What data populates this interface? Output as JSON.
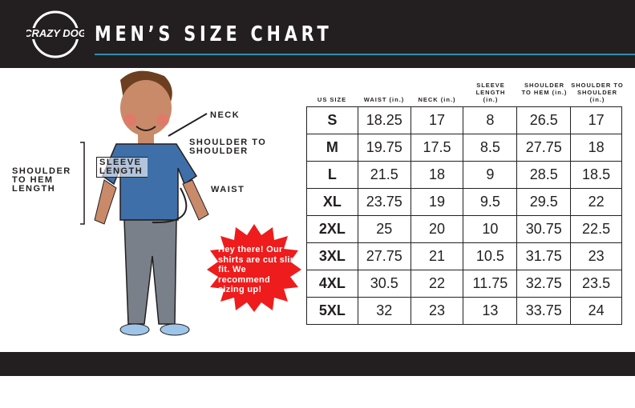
{
  "header": {
    "title": "MEN’S SIZE CHART",
    "logo": "Crazy Dog T-Shirts - Custom Shirts & More - Rochester, NY",
    "accent_color": "#2a8fb0"
  },
  "figure": {
    "neck": "NECK",
    "shoulder_to_shoulder": "SHOULDER TO SHOULDER",
    "sleeve_length": "SLEEVE LENGTH",
    "shoulder_to_hem": "SHOULDER TO HEM LENGTH",
    "waist": "WAIST"
  },
  "callout": {
    "text": "Hey there! Our shirts are cut slim fit. We recommend sizing up!",
    "color": "#ee1c1c"
  },
  "table": {
    "headers": [
      "US SIZE",
      "WAIST (in.)",
      "NECK (in.)",
      "SLEEVE LENGTH (in.)",
      "SHOULDER TO HEM (in.)",
      "SHOULDER TO SHOULDER (in.)"
    ],
    "rows": [
      [
        "S",
        "18.25",
        "17",
        "8",
        "26.5",
        "17"
      ],
      [
        "M",
        "19.75",
        "17.5",
        "8.5",
        "27.75",
        "18"
      ],
      [
        "L",
        "21.5",
        "18",
        "9",
        "28.5",
        "18.5"
      ],
      [
        "XL",
        "23.75",
        "19",
        "9.5",
        "29.5",
        "22"
      ],
      [
        "2XL",
        "25",
        "20",
        "10",
        "30.75",
        "22.5"
      ],
      [
        "3XL",
        "27.75",
        "21",
        "10.5",
        "31.75",
        "23"
      ],
      [
        "4XL",
        "30.5",
        "22",
        "11.75",
        "32.75",
        "23.5"
      ],
      [
        "5XL",
        "32",
        "23",
        "13",
        "33.75",
        "24"
      ]
    ]
  }
}
